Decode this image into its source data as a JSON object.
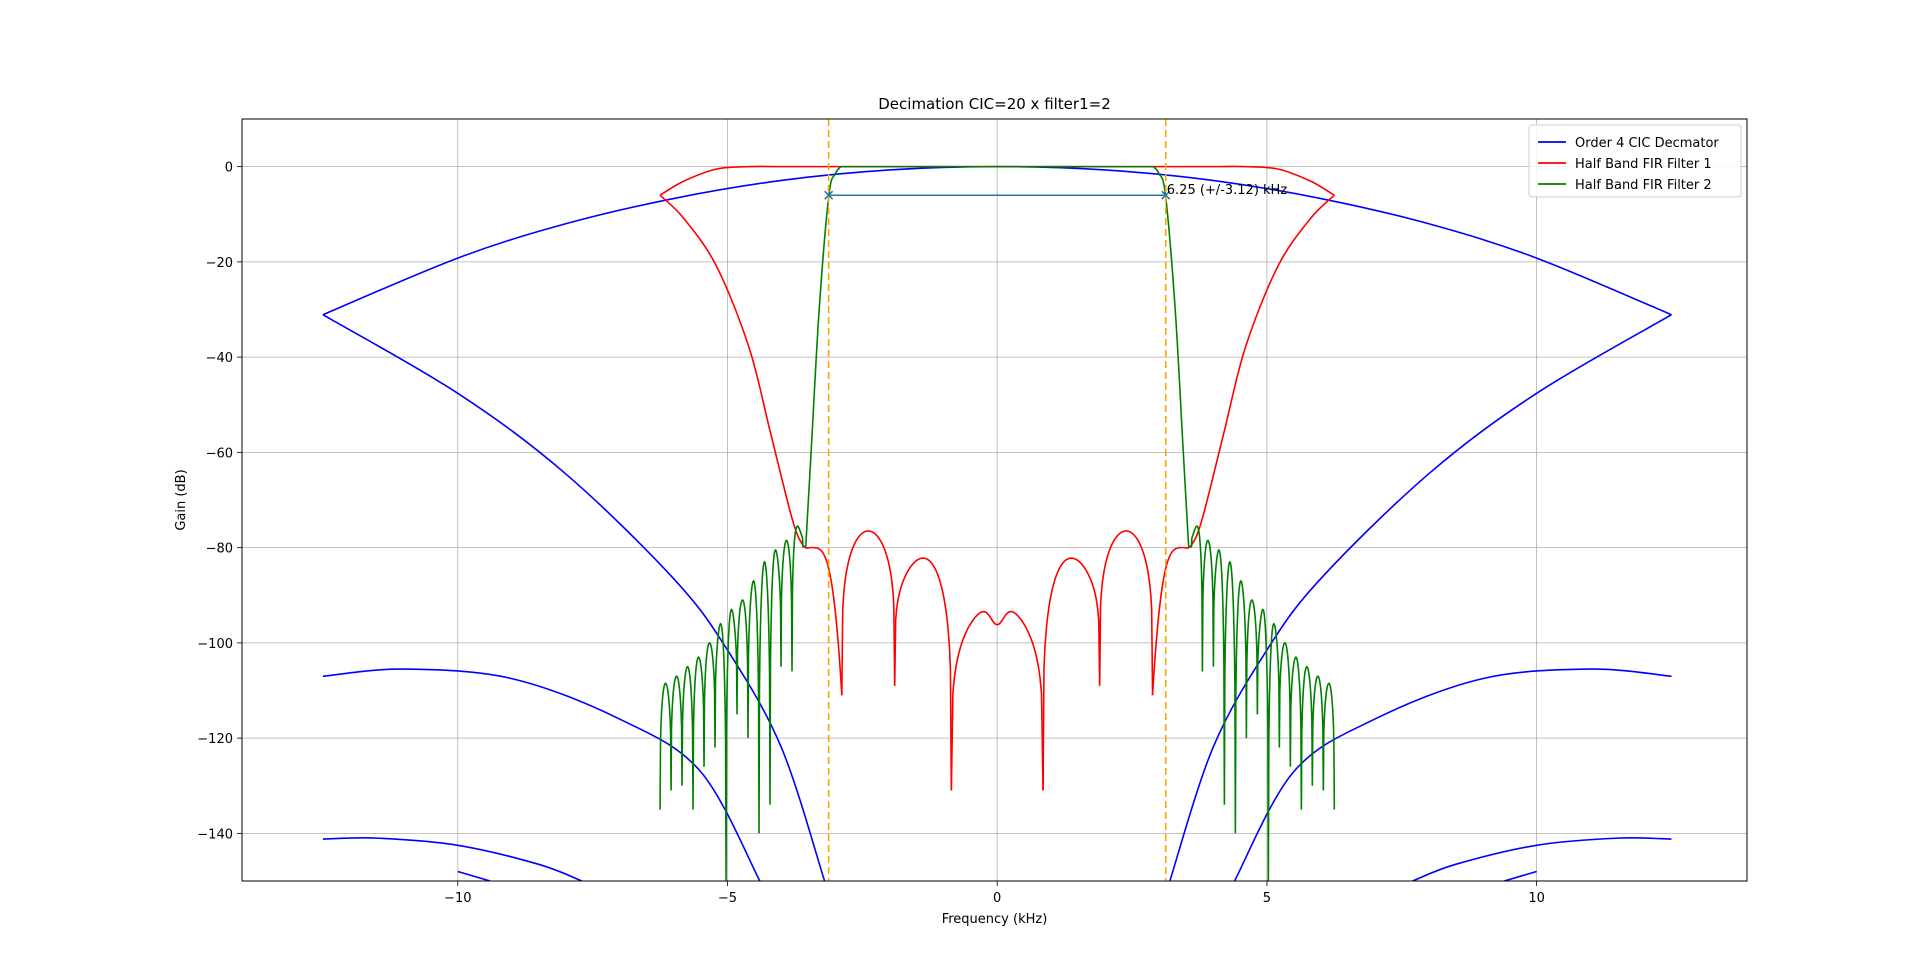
{
  "chart_data": {
    "type": "line",
    "title": "Decimation CIC=20 x filter1=2",
    "xlabel": "Frequency (kHz)",
    "ylabel": "Gain (dB)",
    "xlim": [
      -14.0,
      13.9
    ],
    "ylim": [
      -150,
      10
    ],
    "x_ticks": [
      -10,
      -5,
      0,
      5,
      10
    ],
    "x_tick_labels": [
      "−10",
      "−5",
      "0",
      "5",
      "10"
    ],
    "y_ticks": [
      0,
      -20,
      -40,
      -60,
      -80,
      -100,
      -120,
      -140
    ],
    "y_tick_labels": [
      "0",
      "−20",
      "−40",
      "−60",
      "−80",
      "−100",
      "−120",
      "−140"
    ],
    "grid": true,
    "legend_position": "top-right",
    "series": [
      {
        "name": "Order 4 CIC Decmator",
        "color": "#0000ff",
        "fs_khz": 25,
        "note_range": [
          -12.5,
          12.5
        ],
        "branches": [
          {
            "x": [
              -12.5,
              -10,
              -8,
              -6,
              -4,
              -2,
              0,
              2,
              4,
              6,
              8,
              10,
              12.5
            ],
            "y": [
              -31.1,
              -19.2,
              -12.0,
              -6.7,
              -2.9,
              -0.7,
              0,
              -0.7,
              -2.9,
              -6.7,
              -12.0,
              -19.2,
              -31.1
            ]
          },
          {
            "x": [
              -12.5,
              -10,
              -8,
              -6,
              -5,
              -4,
              -3.2
            ],
            "y": [
              -31.1,
              -47.6,
              -64.5,
              -86.5,
              -101.5,
              -122.0,
              -150
            ]
          },
          {
            "x": [
              3.2,
              4,
              5,
              6,
              8,
              10,
              12.5
            ],
            "y": [
              -150,
              -122.0,
              -101.5,
              -86.5,
              -64.5,
              -47.6,
              -31.1
            ]
          },
          {
            "x": [
              -12.5,
              -11,
              -9,
              -7,
              -5.5,
              -4.4
            ],
            "y": [
              -107,
              -105.5,
              -107.5,
              -116.0,
              -127.0,
              -150
            ]
          },
          {
            "x": [
              4.4,
              5.5,
              7,
              9,
              11,
              12.5
            ],
            "y": [
              -150,
              -127.0,
              -116.0,
              -107.5,
              -105.5,
              -107
            ]
          },
          {
            "x": [
              -12.5,
              -11.5,
              -10,
              -8.5,
              -7.7
            ],
            "y": [
              -141.2,
              -141.0,
              -142.5,
              -146.5,
              -150
            ]
          },
          {
            "x": [
              7.7,
              8.5,
              10,
              11.5,
              12.5
            ],
            "y": [
              -150,
              -146.5,
              -142.5,
              -141.0,
              -141.2
            ]
          },
          {
            "x": [
              -10,
              -9.4
            ],
            "y": [
              -148.0,
              -150
            ]
          },
          {
            "x": [
              9.4,
              10
            ],
            "y": [
              -150,
              -148.0
            ]
          }
        ]
      },
      {
        "name": "Half Band FIR Filter 1",
        "color": "#ff0000",
        "passband": [
          {
            "x": [
              -6.25,
              -5.8,
              -5.2,
              -4.6,
              -4.0,
              -3.5,
              -3.1
            ],
            "y": [
              -6,
              -3.0,
              -0.5,
              0,
              0,
              0,
              0
            ]
          },
          {
            "x": [
              3.1,
              3.5,
              4.0,
              4.6,
              5.2,
              5.8,
              6.25
            ],
            "y": [
              0,
              0,
              0,
              0,
              -0.5,
              -3.0,
              -6
            ]
          },
          {
            "x": [
              -3.1,
              0,
              3.1
            ],
            "y": [
              0,
              0,
              0
            ]
          }
        ],
        "transition": [
          {
            "x": [
              -6.25,
              -5.8,
              -5.2,
              -4.6,
              -4.2,
              -3.8,
              -3.6,
              -3.45
            ],
            "y": [
              -6,
              -11,
              -21,
              -38,
              -56,
              -74,
              -79.5,
              -80
            ]
          },
          {
            "x": [
              3.45,
              3.6,
              3.8,
              4.2,
              4.6,
              5.2,
              5.8,
              6.25
            ],
            "y": [
              -80,
              -79.5,
              -74,
              -56,
              -38,
              -21,
              -11,
              -6
            ]
          }
        ],
        "stopband_nulls_x": [
          -2.88,
          -1.9,
          -0.85,
          0.85,
          1.9,
          2.88
        ],
        "stopband_null_depths": [
          -111,
          -109,
          -131,
          -131,
          -109,
          -111
        ],
        "stopband_lobes": [
          {
            "x1": -3.45,
            "x2": -2.88,
            "peak": -80.0
          },
          {
            "x1": -2.88,
            "x2": -1.9,
            "peak": -76.5
          },
          {
            "x1": -1.9,
            "x2": -0.85,
            "peak": -82.2
          },
          {
            "x1": -0.85,
            "x2": 0.85,
            "peak": -92.0,
            "center_dip": -96.2
          },
          {
            "x1": 0.85,
            "x2": 1.9,
            "peak": -82.2
          },
          {
            "x1": 1.9,
            "x2": 2.88,
            "peak": -76.5
          },
          {
            "x1": 2.88,
            "x2": 3.45,
            "peak": -80.0
          }
        ]
      },
      {
        "name": "Half Band FIR Filter 2",
        "color": "#008000",
        "passband": {
          "x": [
            -2.9,
            -2.5,
            0,
            2.5,
            2.9
          ],
          "y": [
            0,
            0,
            0,
            0,
            0
          ]
        },
        "transition": [
          {
            "x": [
              -3.55,
              -3.45,
              -3.3,
              -3.12,
              -3.0,
              -2.9
            ],
            "y": [
              -80,
              -60,
              -30,
              -6,
              -1.5,
              0
            ]
          },
          {
            "x": [
              2.9,
              3.0,
              3.12,
              3.3,
              3.45,
              3.55
            ],
            "y": [
              0,
              -1.5,
              -6,
              -30,
              -60,
              -80
            ]
          }
        ],
        "stopband_range_khz": [
          3.6,
          6.25
        ],
        "stopband_lobe_peaks": [
          -75.5,
          -78.5,
          -80.5,
          -83,
          -87,
          -91,
          -93,
          -96,
          -100,
          -103,
          -105,
          -107,
          -108.5
        ],
        "stopband_null_depths": [
          -106,
          -105,
          -134,
          -140,
          -120,
          -115,
          -150,
          -122,
          -126,
          -135,
          -130,
          -131,
          -135
        ]
      }
    ],
    "reference_lines": {
      "type": "vertical",
      "x": [
        -3.125,
        3.125
      ],
      "color": "#ffa500",
      "style": "dashed"
    },
    "annotation": {
      "text": "6.25 (+/-3.12) kHz",
      "y": -6,
      "x_start": -3.125,
      "x_end": 3.125,
      "color": "#1f77b4"
    }
  }
}
